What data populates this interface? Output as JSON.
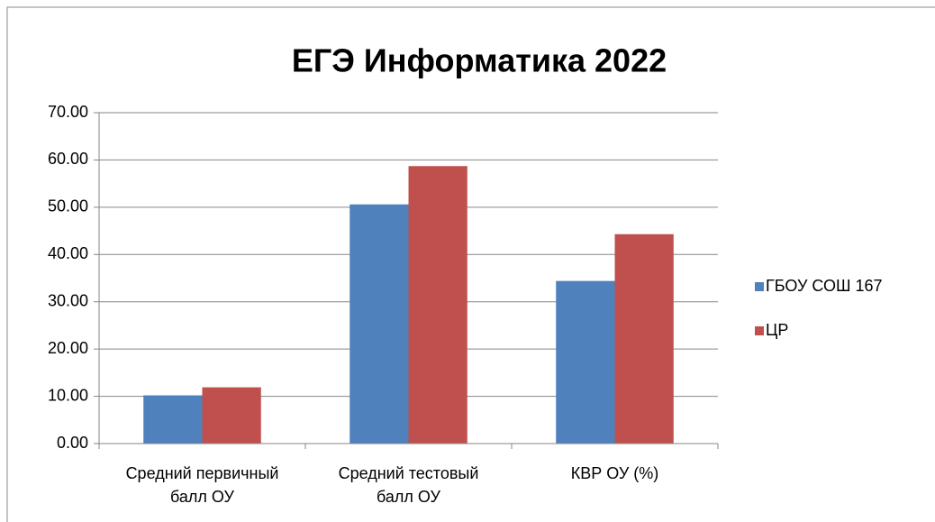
{
  "chart_data": {
    "type": "bar",
    "title": "ЕГЭ Информатика 2022",
    "categories": [
      "Средний первичный балл ОУ",
      "Средний тестовый балл ОУ",
      "КВР ОУ (%)"
    ],
    "series": [
      {
        "name": "ГБОУ СОШ 167",
        "color": "#4f81bd",
        "values": [
          10.2,
          50.6,
          34.4
        ]
      },
      {
        "name": "ЦР",
        "color": "#c0504d",
        "values": [
          11.9,
          58.7,
          44.3
        ]
      }
    ],
    "ylim": [
      0,
      70
    ],
    "yticks": [
      {
        "value": 0,
        "label": "0.00"
      },
      {
        "value": 10,
        "label": "10.00"
      },
      {
        "value": 20,
        "label": "20.00"
      },
      {
        "value": 30,
        "label": "30.00"
      },
      {
        "value": 40,
        "label": "40.00"
      },
      {
        "value": 50,
        "label": "50.00"
      },
      {
        "value": 60,
        "label": "60.00"
      },
      {
        "value": 70,
        "label": "70.00"
      }
    ],
    "grid": true,
    "legend": "right"
  }
}
